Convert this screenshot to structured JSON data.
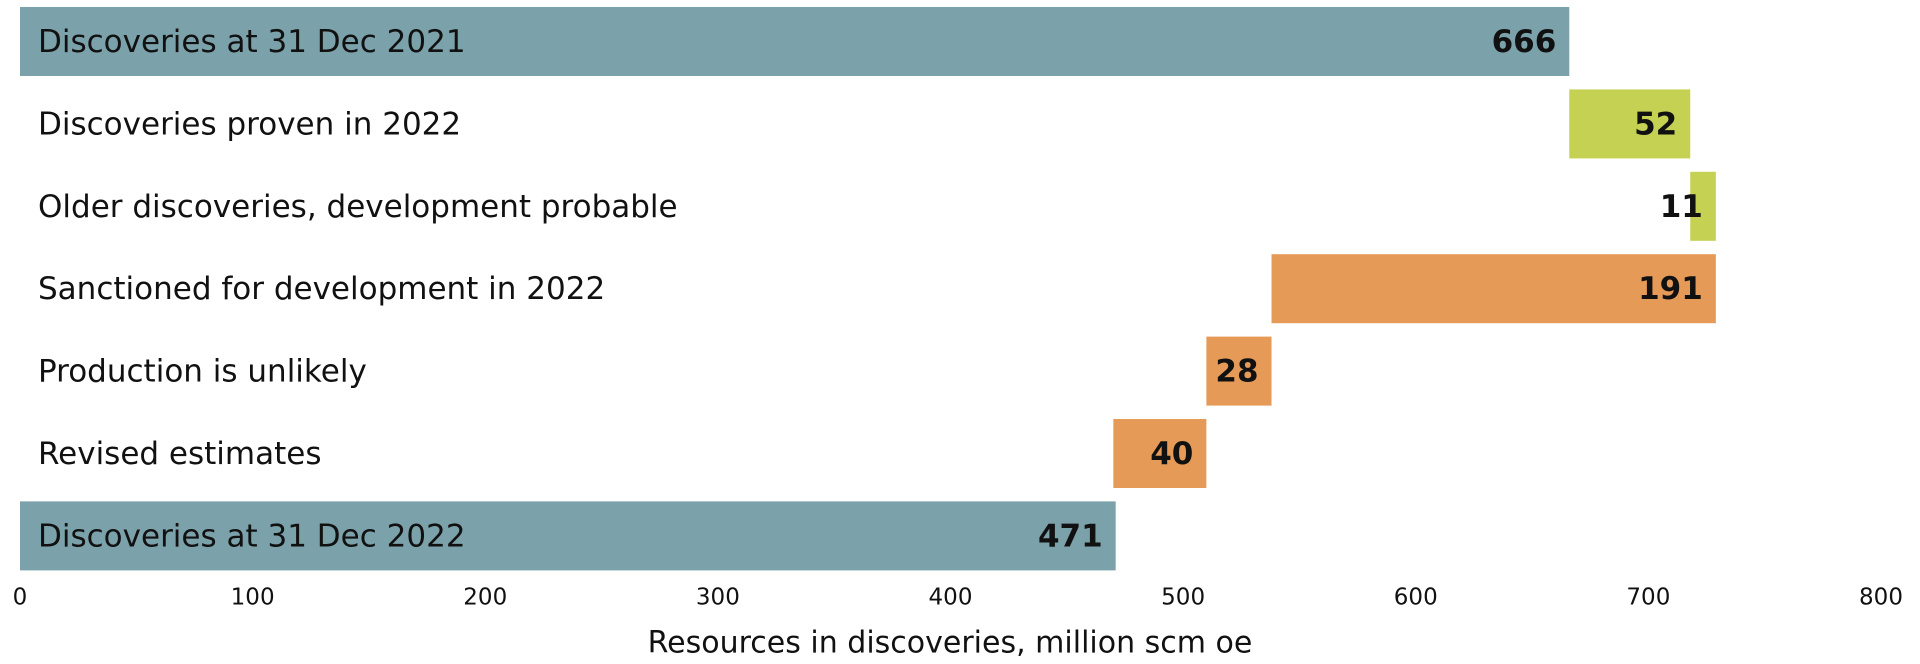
{
  "chart_data": {
    "type": "waterfall",
    "orientation": "horizontal",
    "categories": [
      "Discoveries at 31 Dec 2021",
      "Discoveries proven in 2022",
      "Older discoveries, development probable",
      "Sanctioned for development in 2022",
      "Production is unlikely",
      "Revised estimates",
      "Discoveries at 31 Dec 2022"
    ],
    "values": [
      666,
      52,
      11,
      -191,
      -28,
      -40,
      471
    ],
    "value_labels": [
      "666",
      "52",
      "11",
      "191",
      "28",
      "40",
      "471"
    ],
    "measure": [
      "absolute",
      "relative",
      "relative",
      "relative",
      "relative",
      "relative",
      "absolute"
    ],
    "colors": [
      "#7ba1aa",
      "#c5d152",
      "#c5d152",
      "#e69a58",
      "#e69a58",
      "#e69a58",
      "#7ba1aa"
    ],
    "xlabel": "Resources in discoveries, million scm oe",
    "xlim": [
      0,
      800
    ],
    "xticks": [
      0,
      100,
      200,
      300,
      400,
      500,
      600,
      700,
      800
    ]
  }
}
